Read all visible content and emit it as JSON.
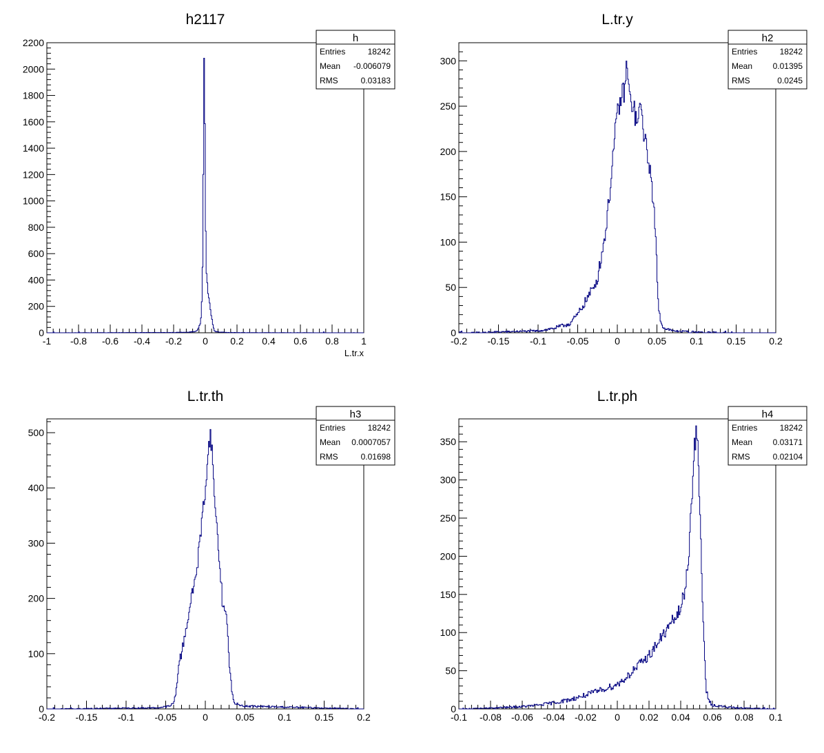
{
  "colors": {
    "line": "#000080",
    "axis": "#000000",
    "background": "#ffffff"
  },
  "chart_data": [
    {
      "type": "histogram",
      "title": "h2117",
      "xlabel": "L.tr.x",
      "ylabel": "",
      "xlim": [
        -1,
        1
      ],
      "ylim": [
        0,
        2200
      ],
      "x_ticks": [
        "-1",
        "-0.8",
        "-0.6",
        "-0.4",
        "-0.2",
        "0",
        "0.2",
        "0.4",
        "0.6",
        "0.8",
        "1"
      ],
      "y_ticks": [
        "0",
        "200",
        "400",
        "600",
        "800",
        "1000",
        "1200",
        "1400",
        "1600",
        "1800",
        "2000",
        "2200"
      ],
      "stats": {
        "name": "h",
        "rows": [
          [
            "Entries",
            "18242"
          ],
          [
            "Mean",
            "-0.006079"
          ],
          [
            "RMS",
            "0.03183"
          ]
        ]
      },
      "grid": false,
      "series": [
        {
          "x": [
            -1.0,
            -0.2,
            -0.1,
            -0.06,
            -0.05,
            -0.04,
            -0.03,
            -0.025,
            -0.02,
            -0.015,
            -0.012,
            -0.01,
            -0.008,
            -0.006,
            -0.004,
            -0.002,
            0.0,
            0.002,
            0.005,
            0.01,
            0.015,
            0.02,
            0.03,
            0.04,
            0.05,
            0.06,
            0.1,
            0.2,
            1.0
          ],
          "y": [
            0,
            2,
            5,
            10,
            20,
            40,
            80,
            150,
            300,
            700,
            1300,
            1800,
            2080,
            2100,
            1900,
            1500,
            1050,
            800,
            520,
            400,
            330,
            280,
            200,
            120,
            40,
            10,
            4,
            1,
            0
          ]
        }
      ]
    },
    {
      "type": "histogram",
      "title": "L.tr.y",
      "xlabel": "",
      "ylabel": "",
      "xlim": [
        -0.2,
        0.2
      ],
      "ylim": [
        0,
        320
      ],
      "x_ticks": [
        "-0.2",
        "-0.15",
        "-0.1",
        "-0.05",
        "0",
        "0.05",
        "0.1",
        "0.15",
        "0.2"
      ],
      "y_ticks": [
        "0",
        "50",
        "100",
        "150",
        "200",
        "250",
        "300"
      ],
      "stats": {
        "name": "h2",
        "rows": [
          [
            "Entries",
            "18242"
          ],
          [
            "Mean",
            "0.01395"
          ],
          [
            "RMS",
            "0.0245"
          ]
        ]
      },
      "grid": false,
      "series": [
        {
          "x": [
            -0.2,
            -0.15,
            -0.1,
            -0.08,
            -0.06,
            -0.05,
            -0.04,
            -0.03,
            -0.025,
            -0.02,
            -0.015,
            -0.01,
            -0.005,
            0.0,
            0.005,
            0.01,
            0.012,
            0.015,
            0.02,
            0.025,
            0.03,
            0.035,
            0.04,
            0.045,
            0.048,
            0.05,
            0.052,
            0.055,
            0.06,
            0.07,
            0.1,
            0.15,
            0.2
          ],
          "y": [
            0,
            1,
            2,
            5,
            10,
            20,
            35,
            50,
            60,
            85,
            110,
            150,
            200,
            240,
            260,
            270,
            300,
            260,
            250,
            230,
            250,
            210,
            190,
            150,
            110,
            70,
            30,
            10,
            5,
            2,
            1,
            0,
            0
          ]
        }
      ]
    },
    {
      "type": "histogram",
      "title": "L.tr.th",
      "xlabel": "",
      "ylabel": "",
      "xlim": [
        -0.2,
        0.2
      ],
      "ylim": [
        0,
        525
      ],
      "x_ticks": [
        "-0.2",
        "-0.15",
        "-0.1",
        "-0.05",
        "0",
        "0.05",
        "0.1",
        "0.15",
        "0.2"
      ],
      "y_ticks": [
        "0",
        "100",
        "200",
        "300",
        "400",
        "500"
      ],
      "stats": {
        "name": "h3",
        "rows": [
          [
            "Entries",
            "18242"
          ],
          [
            "Mean",
            "0.0007057"
          ],
          [
            "RMS",
            "0.01698"
          ]
        ]
      },
      "grid": false,
      "series": [
        {
          "x": [
            -0.2,
            -0.06,
            -0.045,
            -0.04,
            -0.037,
            -0.035,
            -0.033,
            -0.03,
            -0.025,
            -0.02,
            -0.015,
            -0.01,
            -0.005,
            0.0,
            0.003,
            0.006,
            0.008,
            0.01,
            0.013,
            0.016,
            0.02,
            0.022,
            0.025,
            0.028,
            0.03,
            0.033,
            0.036,
            0.05,
            0.2
          ],
          "y": [
            0,
            2,
            5,
            10,
            30,
            60,
            85,
            100,
            140,
            180,
            220,
            260,
            330,
            400,
            450,
            500,
            480,
            420,
            360,
            300,
            230,
            180,
            190,
            140,
            90,
            40,
            10,
            5,
            0
          ]
        }
      ]
    },
    {
      "type": "histogram",
      "title": "L.tr.ph",
      "xlabel": "",
      "ylabel": "",
      "xlim": [
        -0.1,
        0.1
      ],
      "ylim": [
        0,
        380
      ],
      "x_ticks": [
        "-0.1",
        "-0.08",
        "-0.06",
        "-0.04",
        "-0.02",
        "0",
        "0.02",
        "0.04",
        "0.06",
        "0.08",
        "0.1"
      ],
      "y_ticks": [
        "0",
        "50",
        "100",
        "150",
        "200",
        "250",
        "300",
        "350"
      ],
      "stats": {
        "name": "h4",
        "rows": [
          [
            "Entries",
            "18242"
          ],
          [
            "Mean",
            "0.03171"
          ],
          [
            "RMS",
            "0.02104"
          ]
        ]
      },
      "grid": false,
      "series": [
        {
          "x": [
            -0.1,
            -0.08,
            -0.06,
            -0.05,
            -0.04,
            -0.03,
            -0.02,
            -0.01,
            0.0,
            0.005,
            0.01,
            0.015,
            0.02,
            0.025,
            0.03,
            0.035,
            0.04,
            0.043,
            0.045,
            0.047,
            0.049,
            0.05,
            0.051,
            0.052,
            0.053,
            0.054,
            0.055,
            0.056,
            0.058,
            0.06,
            0.07,
            0.08,
            0.1
          ],
          "y": [
            0,
            1,
            3,
            5,
            8,
            12,
            18,
            25,
            32,
            40,
            50,
            60,
            70,
            85,
            100,
            115,
            130,
            160,
            200,
            280,
            350,
            360,
            330,
            270,
            200,
            130,
            70,
            25,
            10,
            5,
            2,
            1,
            0
          ]
        }
      ]
    }
  ]
}
